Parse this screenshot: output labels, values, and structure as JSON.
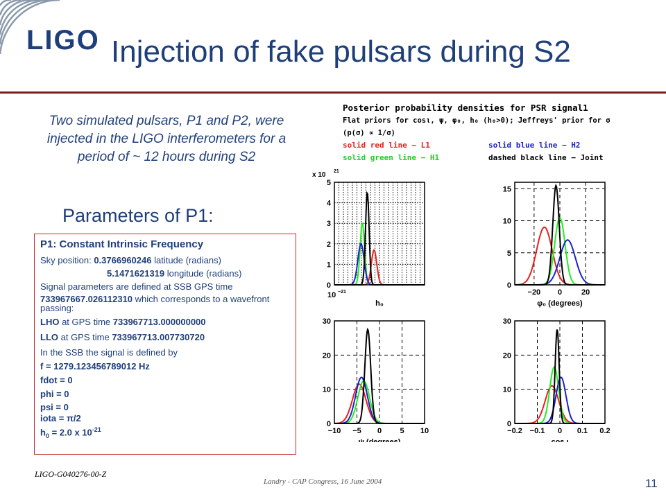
{
  "header": {
    "logo_text": "LIGO",
    "title": "Injection of fake pulsars during S2"
  },
  "intro_text": "Two simulated pulsars, P1 and P2, were injected in the LIGO interferometers for a period of ~ 12 hours during S2",
  "params_heading": "Parameters of P1:",
  "params": {
    "heading": "P1: Constant Intrinsic Frequency",
    "sky_prefix": "Sky position: ",
    "latitude_value": "0.3766960246",
    "latitude_suffix": " latitude (radians)",
    "longitude_value": "5.1471621319",
    "longitude_suffix": " longitude (radians)",
    "ssb_text": "Signal parameters are defined at SSB GPS time",
    "ssb_time": "733967667.026112310",
    "ssb_suffix": " which corresponds to a wavefront passing:",
    "lho_label": "LHO",
    "lho_mid": " at GPS time ",
    "lho_time": "733967713.000000000",
    "llo_label": "LLO",
    "llo_mid": " at GPS time ",
    "llo_time": "733967713.007730720",
    "ssb_defined": "In the SSB the signal is defined by",
    "f": "f = 1279.123456789012 Hz",
    "fdot": "fdot = 0",
    "phi": "phi = 0",
    "psi": "psi = 0",
    "iota_prefix": "iota = ",
    "iota_value": "π/2",
    "h0_prefix": "h",
    "h0_sub": "0",
    "h0_mid": " = 2.0 x 10",
    "h0_exp": "-21"
  },
  "legend": {
    "title": "Posterior probability densities for PSR signal1",
    "priors": "Flat priors for cosι, ψ, φ₀, h₀ (h₀>0); Jeffreys' prior for σ (p(σ) ∝ 1/σ)",
    "red": "solid red line − L1",
    "blue": "solid blue line − H2",
    "green": "solid green line − H1",
    "black": "dashed black line − Joint"
  },
  "colors": {
    "title": "#1f3f7a",
    "rule": "#7a1f1f",
    "box_border": "#c0282d",
    "L1": "#e8201e",
    "H1": "#22ee22",
    "H2": "#1a22cc",
    "Joint": "#000000"
  },
  "footer": {
    "doc_id": "LIGO-G040276-00-Z",
    "conference": "Landry - CAP Congress, 16 June 2004",
    "page": "11"
  },
  "chart_data": [
    {
      "type": "line",
      "xlabel": "h₀",
      "ylabel": "",
      "ylabel_multiplier": "x 10",
      "ylabel_multiplier_exp": "21",
      "x_tick_label": "10",
      "x_tick_exp": "−21",
      "xlim": [
        0,
        1
      ],
      "ylim": [
        0,
        5
      ],
      "yticks": [
        0,
        1,
        2,
        3,
        4,
        5
      ],
      "series": [
        {
          "name": "L1",
          "color": "#e8201e",
          "peak_x": 0.44,
          "peak_y": 1.7,
          "width": 0.03
        },
        {
          "name": "H1",
          "color": "#22ee22",
          "peak_x": 0.31,
          "peak_y": 3.0,
          "width": 0.025
        },
        {
          "name": "H2",
          "color": "#1a22cc",
          "peak_x": 0.295,
          "peak_y": 2.0,
          "width": 0.035
        },
        {
          "name": "Joint",
          "color": "#000000",
          "peak_x": 0.365,
          "peak_y": 4.5,
          "width": 0.02
        }
      ]
    },
    {
      "type": "line",
      "xlabel": "φ₀ (degrees)",
      "ylabel": "",
      "xlim": [
        -35,
        35
      ],
      "ylim": [
        0,
        16
      ],
      "xticks": [
        -20,
        0,
        20
      ],
      "yticks": [
        0,
        5,
        10,
        15
      ],
      "series": [
        {
          "name": "L1",
          "color": "#e8201e",
          "peak_x": -12,
          "peak_y": 9,
          "width": 6
        },
        {
          "name": "H1",
          "color": "#22ee22",
          "peak_x": 0,
          "peak_y": 10.5,
          "width": 4
        },
        {
          "name": "H2",
          "color": "#1a22cc",
          "peak_x": 6,
          "peak_y": 7,
          "width": 6
        },
        {
          "name": "Joint",
          "color": "#000000",
          "peak_x": -3,
          "peak_y": 15.5,
          "width": 2.5
        }
      ]
    },
    {
      "type": "line",
      "xlabel": "ψ (degrees)",
      "ylabel": "",
      "xlim": [
        -10,
        10
      ],
      "ylim": [
        0,
        30
      ],
      "xticks": [
        -10,
        -5,
        0,
        5,
        10
      ],
      "yticks": [
        0,
        10,
        20,
        30
      ],
      "series": [
        {
          "name": "L1",
          "color": "#e8201e",
          "peak_x": -4.5,
          "peak_y": 11.5,
          "width": 1.5
        },
        {
          "name": "H1",
          "color": "#22ee22",
          "peak_x": -3.5,
          "peak_y": 12.5,
          "width": 1.3
        },
        {
          "name": "H2",
          "color": "#1a22cc",
          "peak_x": -4.0,
          "peak_y": 13.5,
          "width": 1.3
        },
        {
          "name": "Joint",
          "color": "#000000",
          "peak_x": -2.6,
          "peak_y": 27.5,
          "width": 0.65
        }
      ]
    },
    {
      "type": "line",
      "xlabel": "cos ι",
      "ylabel": "",
      "xlim": [
        -0.2,
        0.2
      ],
      "ylim": [
        0,
        30
      ],
      "xticks": [
        -0.2,
        -0.1,
        0,
        0.1,
        0.2
      ],
      "yticks": [
        0,
        10,
        20,
        30
      ],
      "series": [
        {
          "name": "L1",
          "color": "#e8201e",
          "peak_x": -0.035,
          "peak_y": 11,
          "width": 0.03
        },
        {
          "name": "H1",
          "color": "#22ee22",
          "peak_x": -0.025,
          "peak_y": 16.5,
          "width": 0.02
        },
        {
          "name": "H2",
          "color": "#1a22cc",
          "peak_x": 0.005,
          "peak_y": 13.5,
          "width": 0.022
        },
        {
          "name": "Joint",
          "color": "#000000",
          "peak_x": -0.012,
          "peak_y": 27.5,
          "width": 0.009
        }
      ]
    }
  ]
}
